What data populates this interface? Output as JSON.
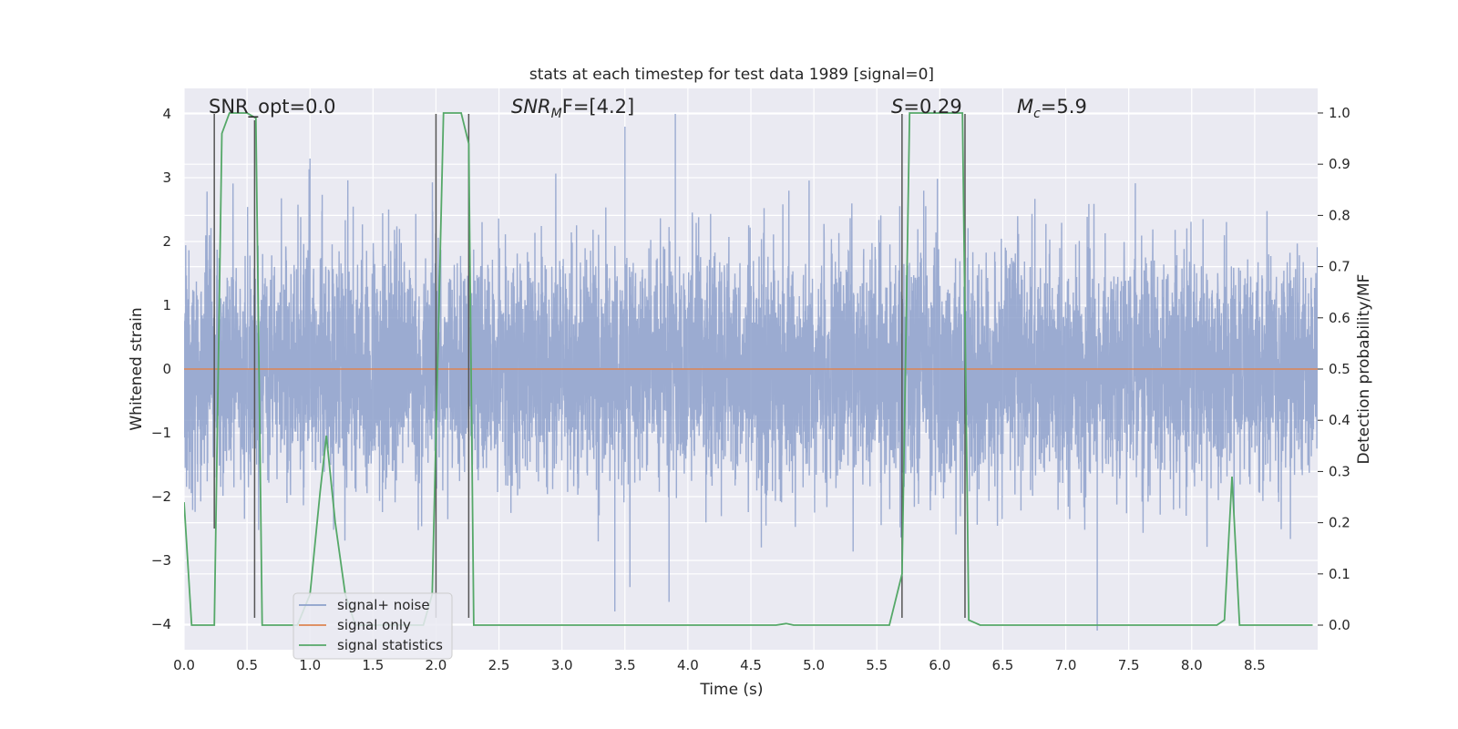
{
  "chart_data": {
    "type": "line",
    "title": "stats at each timestep for test data 1989 [signal=0]",
    "xlabel": "Time (s)",
    "ylabel": "Whitened strain",
    "ylabel_right": "Detection probability/MF",
    "xlim": [
      0.0,
      9.0
    ],
    "ylim": [
      -4.4,
      4.4
    ],
    "ylim_right": [
      -0.048,
      1.048
    ],
    "x_ticks": [
      "0.0",
      "0.5",
      "1.0",
      "1.5",
      "2.0",
      "2.5",
      "3.0",
      "3.5",
      "4.0",
      "4.5",
      "5.0",
      "5.5",
      "6.0",
      "6.5",
      "7.0",
      "7.5",
      "8.0",
      "8.5"
    ],
    "y_ticks": [
      "4",
      "3",
      "2",
      "1",
      "0",
      "−1",
      "−2",
      "−3",
      "−4"
    ],
    "y_ticks_right": [
      "1.0",
      "0.9",
      "0.8",
      "0.7",
      "0.6",
      "0.5",
      "0.4",
      "0.3",
      "0.2",
      "0.1",
      "0.0"
    ],
    "grid": true,
    "legend_location": "lower-left",
    "annotations": {
      "snr_opt": "SNR_opt=0.0",
      "snr_mf_prefix": "SNR",
      "snr_mf_sub": "M",
      "snr_mf_rest": "F=[4.2]",
      "s_label": "S",
      "s_value": "=0.29",
      "mc_label": "M",
      "mc_sub": "c",
      "mc_value": "=5.9"
    },
    "series": [
      {
        "name": "signal+ noise",
        "color": "#8da0cb",
        "style": "noise",
        "x_range": [
          0.0,
          9.0
        ],
        "sigma": 0.9,
        "outlier_peaks": [
          {
            "x": 1.0,
            "y": 3.3
          },
          {
            "x": 3.5,
            "y": 3.8
          },
          {
            "x": 3.9,
            "y": 4.0
          },
          {
            "x": 3.42,
            "y": -3.8
          },
          {
            "x": 3.85,
            "y": -3.65
          },
          {
            "x": 7.25,
            "y": -4.1
          }
        ]
      },
      {
        "name": "signal only",
        "color": "#dd8452",
        "style": "flat",
        "x": [
          0.0,
          9.0
        ],
        "y": [
          0.0,
          0.0
        ]
      },
      {
        "name": "signal statistics",
        "color": "#55a868",
        "axis": "right",
        "x": [
          0.0,
          0.06,
          0.24,
          0.3,
          0.36,
          0.5,
          0.57,
          0.62,
          0.9,
          1.0,
          1.08,
          1.13,
          1.2,
          1.28,
          1.36,
          1.9,
          1.97,
          2.06,
          2.2,
          2.26,
          2.3,
          2.36,
          4.7,
          4.78,
          4.84,
          5.6,
          5.7,
          5.76,
          6.18,
          6.23,
          6.32,
          8.2,
          8.26,
          8.32,
          8.38,
          8.96
        ],
        "y": [
          0.24,
          0.0,
          0.0,
          0.96,
          1.0,
          1.0,
          0.99,
          0.0,
          0.0,
          0.06,
          0.26,
          0.37,
          0.2,
          0.06,
          0.0,
          0.0,
          0.06,
          1.0,
          1.0,
          0.94,
          0.0,
          0.0,
          0.0,
          0.003,
          0.0,
          0.0,
          0.1,
          1.0,
          1.0,
          0.01,
          0.0,
          0.0,
          0.01,
          0.29,
          0.0,
          0.0
        ]
      }
    ],
    "vertical_markers": [
      {
        "x": 0.24,
        "y_top": 4.0,
        "y_bottom": -2.5
      },
      {
        "x": 0.56,
        "y_top": 3.9,
        "y_bottom": -3.9
      },
      {
        "x": 2.0,
        "y_top": 4.0,
        "y_bottom": -3.9
      },
      {
        "x": 2.26,
        "y_top": 4.0,
        "y_bottom": -3.9
      },
      {
        "x": 5.7,
        "y_top": 4.0,
        "y_bottom": -3.9
      },
      {
        "x": 6.2,
        "y_top": 4.0,
        "y_bottom": -3.9
      }
    ]
  },
  "colors": {
    "plot_background": "#eaeaf2",
    "grid": "#ffffff",
    "noise": "#8da0cb",
    "signal": "#dd8452",
    "statistics": "#55a868",
    "markers": "#555555"
  }
}
